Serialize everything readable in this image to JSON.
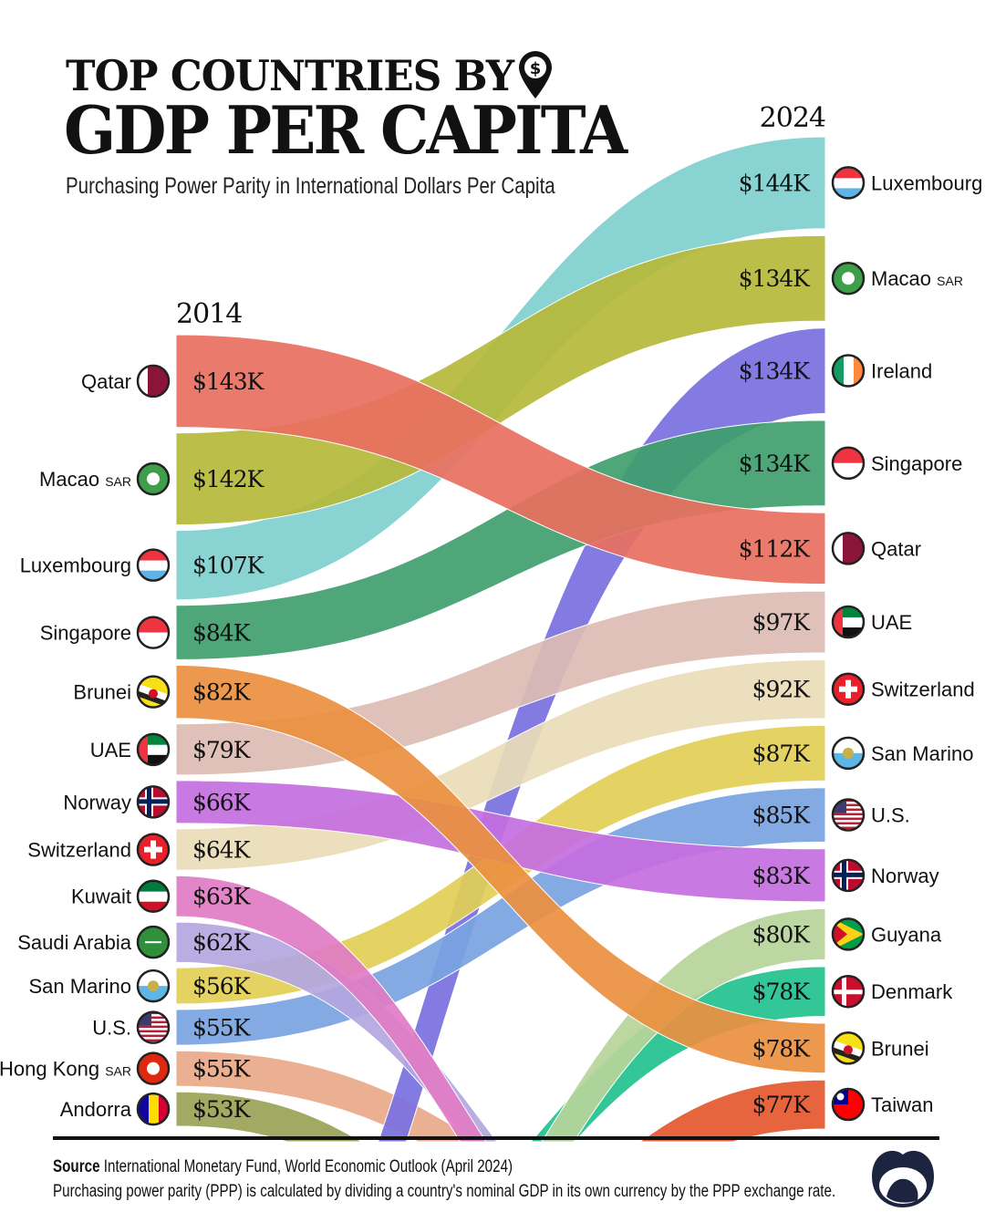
{
  "header": {
    "title_line1": "TOP COUNTRIES BY",
    "title_line2": "GDP PER CAPITA",
    "subtitle": "Purchasing Power Parity in International Dollars Per Capita",
    "title_icon": "dollar-location-pin-icon"
  },
  "footer": {
    "source_label": "Source",
    "source_text": "International Monetary Fund, World Economic Outlook (April 2024)",
    "note": "Purchasing power parity (PPP) is calculated by dividing a country's nominal GDP in its own currency by the PPP exchange rate.",
    "logo_icon": "visual-capitalist-logo-icon"
  },
  "chart_data": {
    "type": "bump-sankey",
    "left_year": "2014",
    "right_year": "2024",
    "left": [
      {
        "country": "Qatar",
        "value": 143,
        "label": "$143K",
        "flag": "qatar-flag-icon"
      },
      {
        "country": "Macao",
        "suffix": "SAR",
        "value": 142,
        "label": "$142K",
        "flag": "macao-flag-icon"
      },
      {
        "country": "Luxembourg",
        "value": 107,
        "label": "$107K",
        "flag": "luxembourg-flag-icon"
      },
      {
        "country": "Singapore",
        "value": 84,
        "label": "$84K",
        "flag": "singapore-flag-icon"
      },
      {
        "country": "Brunei",
        "value": 82,
        "label": "$82K",
        "flag": "brunei-flag-icon"
      },
      {
        "country": "UAE",
        "value": 79,
        "label": "$79K",
        "flag": "uae-flag-icon"
      },
      {
        "country": "Norway",
        "value": 66,
        "label": "$66K",
        "flag": "norway-flag-icon"
      },
      {
        "country": "Switzerland",
        "value": 64,
        "label": "$64K",
        "flag": "switzerland-flag-icon"
      },
      {
        "country": "Kuwait",
        "value": 63,
        "label": "$63K",
        "flag": "kuwait-flag-icon"
      },
      {
        "country": "Saudi Arabia",
        "value": 62,
        "label": "$62K",
        "flag": "saudi-arabia-flag-icon"
      },
      {
        "country": "San Marino",
        "value": 56,
        "label": "$56K",
        "flag": "san-marino-flag-icon"
      },
      {
        "country": "U.S.",
        "value": 55,
        "label": "$55K",
        "flag": "us-flag-icon"
      },
      {
        "country": "Hong Kong",
        "suffix": "SAR",
        "value": 55,
        "label": "$55K",
        "flag": "hong-kong-flag-icon"
      },
      {
        "country": "Andorra",
        "value": 53,
        "label": "$53K",
        "flag": "andorra-flag-icon"
      }
    ],
    "right": [
      {
        "country": "Luxembourg",
        "value": 144,
        "label": "$144K",
        "flag": "luxembourg-flag-icon"
      },
      {
        "country": "Macao",
        "suffix": "SAR",
        "value": 134,
        "label": "$134K",
        "flag": "macao-flag-icon"
      },
      {
        "country": "Ireland",
        "value": 134,
        "label": "$134K",
        "flag": "ireland-flag-icon"
      },
      {
        "country": "Singapore",
        "value": 134,
        "label": "$134K",
        "flag": "singapore-flag-icon"
      },
      {
        "country": "Qatar",
        "value": 112,
        "label": "$112K",
        "flag": "qatar-flag-icon"
      },
      {
        "country": "UAE",
        "value": 97,
        "label": "$97K",
        "flag": "uae-flag-icon"
      },
      {
        "country": "Switzerland",
        "value": 92,
        "label": "$92K",
        "flag": "switzerland-flag-icon"
      },
      {
        "country": "San Marino",
        "value": 87,
        "label": "$87K",
        "flag": "san-marino-flag-icon"
      },
      {
        "country": "U.S.",
        "value": 85,
        "label": "$85K",
        "flag": "us-flag-icon"
      },
      {
        "country": "Norway",
        "value": 83,
        "label": "$83K",
        "flag": "norway-flag-icon"
      },
      {
        "country": "Guyana",
        "value": 80,
        "label": "$80K",
        "flag": "guyana-flag-icon"
      },
      {
        "country": "Denmark",
        "value": 78,
        "label": "$78K",
        "flag": "denmark-flag-icon"
      },
      {
        "country": "Brunei",
        "value": 78,
        "label": "$78K",
        "flag": "brunei-flag-icon"
      },
      {
        "country": "Taiwan",
        "value": 77,
        "label": "$77K",
        "flag": "taiwan-flag-icon"
      }
    ],
    "colors": {
      "Qatar": "#e8705f",
      "Macao": "#b5b83a",
      "Luxembourg": "#7fcfcf",
      "Singapore": "#3f9e6e",
      "Brunei": "#ea9040",
      "UAE": "#dcbcb3",
      "Norway": "#c46ee0",
      "Switzerland": "#e9dcb8",
      "Kuwait": "#e07cc4",
      "Saudi Arabia": "#b4a6e0",
      "San Marino": "#e2cf55",
      "U.S.": "#78a3e0",
      "Hong Kong": "#e9a888",
      "Andorra": "#9aa255",
      "Ireland": "#7a70e0",
      "Guyana": "#b6d49a",
      "Denmark": "#22c28f",
      "Taiwan": "#e4572e"
    }
  }
}
